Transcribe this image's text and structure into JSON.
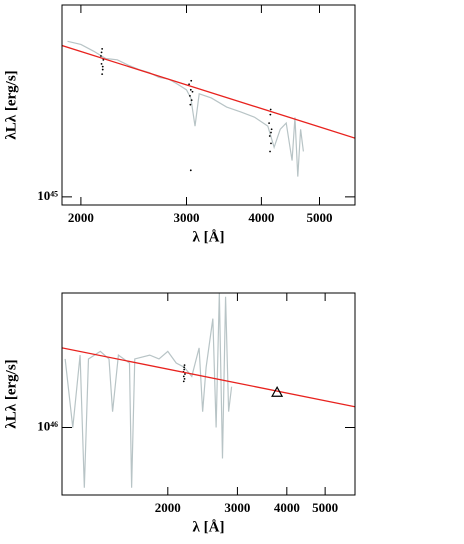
{
  "chart_data": [
    {
      "type": "line",
      "xlabel": "λ [Å]",
      "ylabel": "λLλ [erg/s]",
      "xlog": true,
      "ylog": true,
      "xlim": [
        1860,
        5730
      ],
      "ylim": [
        9e+44,
        1.2e+46
      ],
      "xticks": [
        2000,
        3000,
        4000,
        5000
      ],
      "yticks": [
        {
          "value": 1e+45,
          "label": "10⁴⁵"
        }
      ],
      "series": [
        {
          "color": "#b8c4c6",
          "mode": "lines",
          "x": [
            1900,
            2000,
            2100,
            2200,
            2300,
            2400,
            2500,
            2600,
            2700,
            2800,
            2900,
            3000,
            3050,
            3100,
            3150,
            3300,
            3500,
            3700,
            3900,
            4100,
            4200,
            4300,
            4400,
            4500,
            4550,
            4600,
            4650,
            4700
          ],
          "values": [
            7.5e+45,
            7.2e+45,
            6.6e+45,
            6e+45,
            5.9e+45,
            5.5e+45,
            5.2e+45,
            5e+45,
            4.7e+45,
            4.6e+45,
            4.3e+45,
            4e+45,
            3.6e+45,
            2.5e+45,
            3.8e+45,
            3.6e+45,
            3.2e+45,
            3e+45,
            2.8e+45,
            2.5e+45,
            1.9e+45,
            2.4e+45,
            2.6e+45,
            1.6e+45,
            2.8e+45,
            1.3e+45,
            2.4e+45,
            1.8e+45
          ]
        },
        {
          "color": "#000000",
          "mode": "markers",
          "x": [
            2160,
            2165,
            2170,
            2175,
            2180,
            2170,
            2165,
            2175,
            3030,
            3040,
            3050,
            3060,
            3070,
            3045,
            3055,
            3050,
            4120,
            4130,
            4140,
            4150,
            4160,
            4135,
            4145,
            4150
          ],
          "values": [
            6.2e+45,
            5.6e+45,
            6.8e+45,
            5.2e+45,
            5.9e+45,
            4.9e+45,
            6.5e+45,
            5.4e+45,
            4.3e+45,
            3.7e+45,
            4e+45,
            3.5e+45,
            3.9e+45,
            3.3e+45,
            4.5e+45,
            1.41e+45,
            2.6e+45,
            2.2e+45,
            2.9e+45,
            2e+45,
            2.4e+45,
            1.8e+45,
            3.1e+45,
            2.3e+45
          ]
        },
        {
          "color": "#e8221e",
          "mode": "lines",
          "x": [
            1860,
            5730
          ],
          "values": [
            7.1e+45,
            2.14e+45
          ]
        }
      ]
    },
    {
      "type": "line",
      "xlabel": "λ [Å]",
      "ylabel": "λLλ [erg/s]",
      "xlog": true,
      "ylog": true,
      "xlim": [
        1080,
        5950
      ],
      "ylim": [
        4.6e+45,
        4.7e+46
      ],
      "xticks": [
        2000,
        3000,
        4000,
        5000
      ],
      "yticks": [
        {
          "value": 1e+46,
          "label": "10⁴⁶"
        }
      ],
      "series": [
        {
          "color": "#b8c4c6",
          "mode": "lines",
          "x": [
            1100,
            1150,
            1200,
            1230,
            1260,
            1350,
            1420,
            1450,
            1500,
            1600,
            1620,
            1650,
            1800,
            1900,
            2000,
            2100,
            2200,
            2300,
            2400,
            2450,
            2500,
            2600,
            2650,
            2700,
            2750,
            2800,
            2850,
            2900
          ],
          "values": [
            2.2e+46,
            1e+46,
            2.3e+46,
            5e+45,
            2.2e+46,
            2.4e+46,
            2.2e+46,
            1.2e+46,
            2.3e+46,
            2.1e+46,
            5e+45,
            2.2e+46,
            2.3e+46,
            2.2e+46,
            2.4e+46,
            2.1e+46,
            2e+46,
            1.8e+46,
            2.5e+46,
            1.2e+46,
            2e+46,
            3.5e+46,
            1e+46,
            4.7e+46,
            7e+45,
            4.5e+46,
            1.2e+46,
            1.6e+46
          ]
        },
        {
          "color": "#000000",
          "mode": "markers",
          "x": [
            2190,
            2195,
            2200,
            2205,
            2210,
            2200,
            2195,
            2205
          ],
          "values": [
            1.9e+46,
            1.8e+46,
            2e+46,
            1.75e+46,
            1.85e+46,
            1.95e+46,
            1.7e+46,
            2.05e+46
          ]
        },
        {
          "color": "#e8221e",
          "mode": "lines",
          "x": [
            1080,
            5950
          ],
          "values": [
            2.5e+46,
            1.27e+46
          ]
        },
        {
          "color": "#000000",
          "mode": "triangle",
          "x": [
            3780
          ],
          "values": [
            1.5e+46
          ]
        }
      ]
    }
  ]
}
